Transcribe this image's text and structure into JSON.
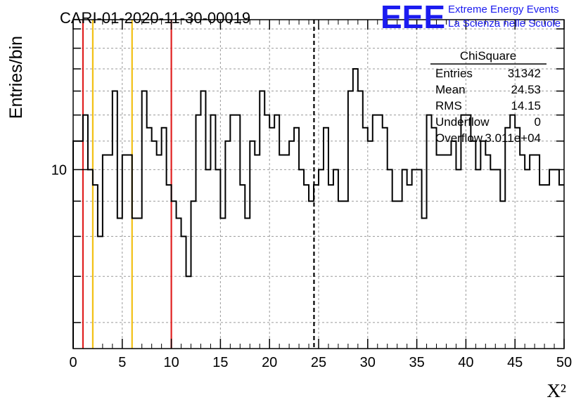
{
  "title": "CARI-01-2020-11-30-00019",
  "logo": {
    "mark": "EEE",
    "line1": "Extreme Energy Events",
    "line2": "La Scienza nelle Scuole",
    "color": "#1b1bf0"
  },
  "stats_box": {
    "name": "ChiSquare",
    "rows": [
      {
        "label": "Entries",
        "value": "31342"
      },
      {
        "label": "Mean",
        "value": "24.53"
      },
      {
        "label": "RMS",
        "value": "14.15"
      },
      {
        "label": "Underflow",
        "value": "0"
      },
      {
        "label": "Overflow",
        "value": "3.011e+04"
      }
    ]
  },
  "chart_data": {
    "type": "step-histogram",
    "title": "CARI-01-2020-11-30-00019",
    "xlabel": "X²",
    "ylabel": "Entries/bin",
    "xlim": [
      0,
      50
    ],
    "ylim": [
      5.5,
      16.5
    ],
    "log_y": true,
    "grid": true,
    "bin_width": 0.5,
    "x_ticks": [
      "0",
      "5",
      "10",
      "15",
      "20",
      "25",
      "30",
      "35",
      "40",
      "45",
      "50"
    ],
    "y_ticks": [
      "10"
    ],
    "values": [
      11,
      11,
      12,
      10,
      9.5,
      8,
      10.5,
      10.5,
      13,
      8.5,
      10.5,
      10.5,
      8.5,
      8.5,
      13,
      11.5,
      11,
      10.5,
      11.5,
      9.5,
      9,
      8.5,
      8,
      7,
      9,
      12,
      13,
      10,
      12,
      10,
      8.5,
      11,
      12,
      12,
      9.5,
      8.5,
      11,
      10.5,
      13,
      12,
      11.5,
      12,
      10.5,
      10.5,
      11,
      11.5,
      10,
      9.5,
      9,
      9.5,
      10,
      11.5,
      9.5,
      10,
      9,
      9,
      13,
      14,
      13,
      11.5,
      11,
      12,
      12,
      11.5,
      10,
      9,
      9,
      10,
      9.5,
      10,
      10,
      8.5,
      12,
      11.5,
      10.5,
      10.5,
      10.5,
      11,
      10,
      12,
      12,
      11,
      10,
      11,
      10.5,
      10,
      10,
      9,
      11.5,
      12,
      11.5,
      10.5,
      10,
      10.5,
      10.5,
      9.5,
      9.5,
      10,
      10,
      9.5
    ],
    "vertical_lines": [
      {
        "x": 1,
        "color": "#e02020",
        "style": "solid"
      },
      {
        "x": 2,
        "color": "#f2c014",
        "style": "solid"
      },
      {
        "x": 6,
        "color": "#f2c014",
        "style": "solid"
      },
      {
        "x": 10,
        "color": "#e02020",
        "style": "solid"
      },
      {
        "x": 24.53,
        "color": "#000000",
        "style": "dashed"
      }
    ]
  }
}
